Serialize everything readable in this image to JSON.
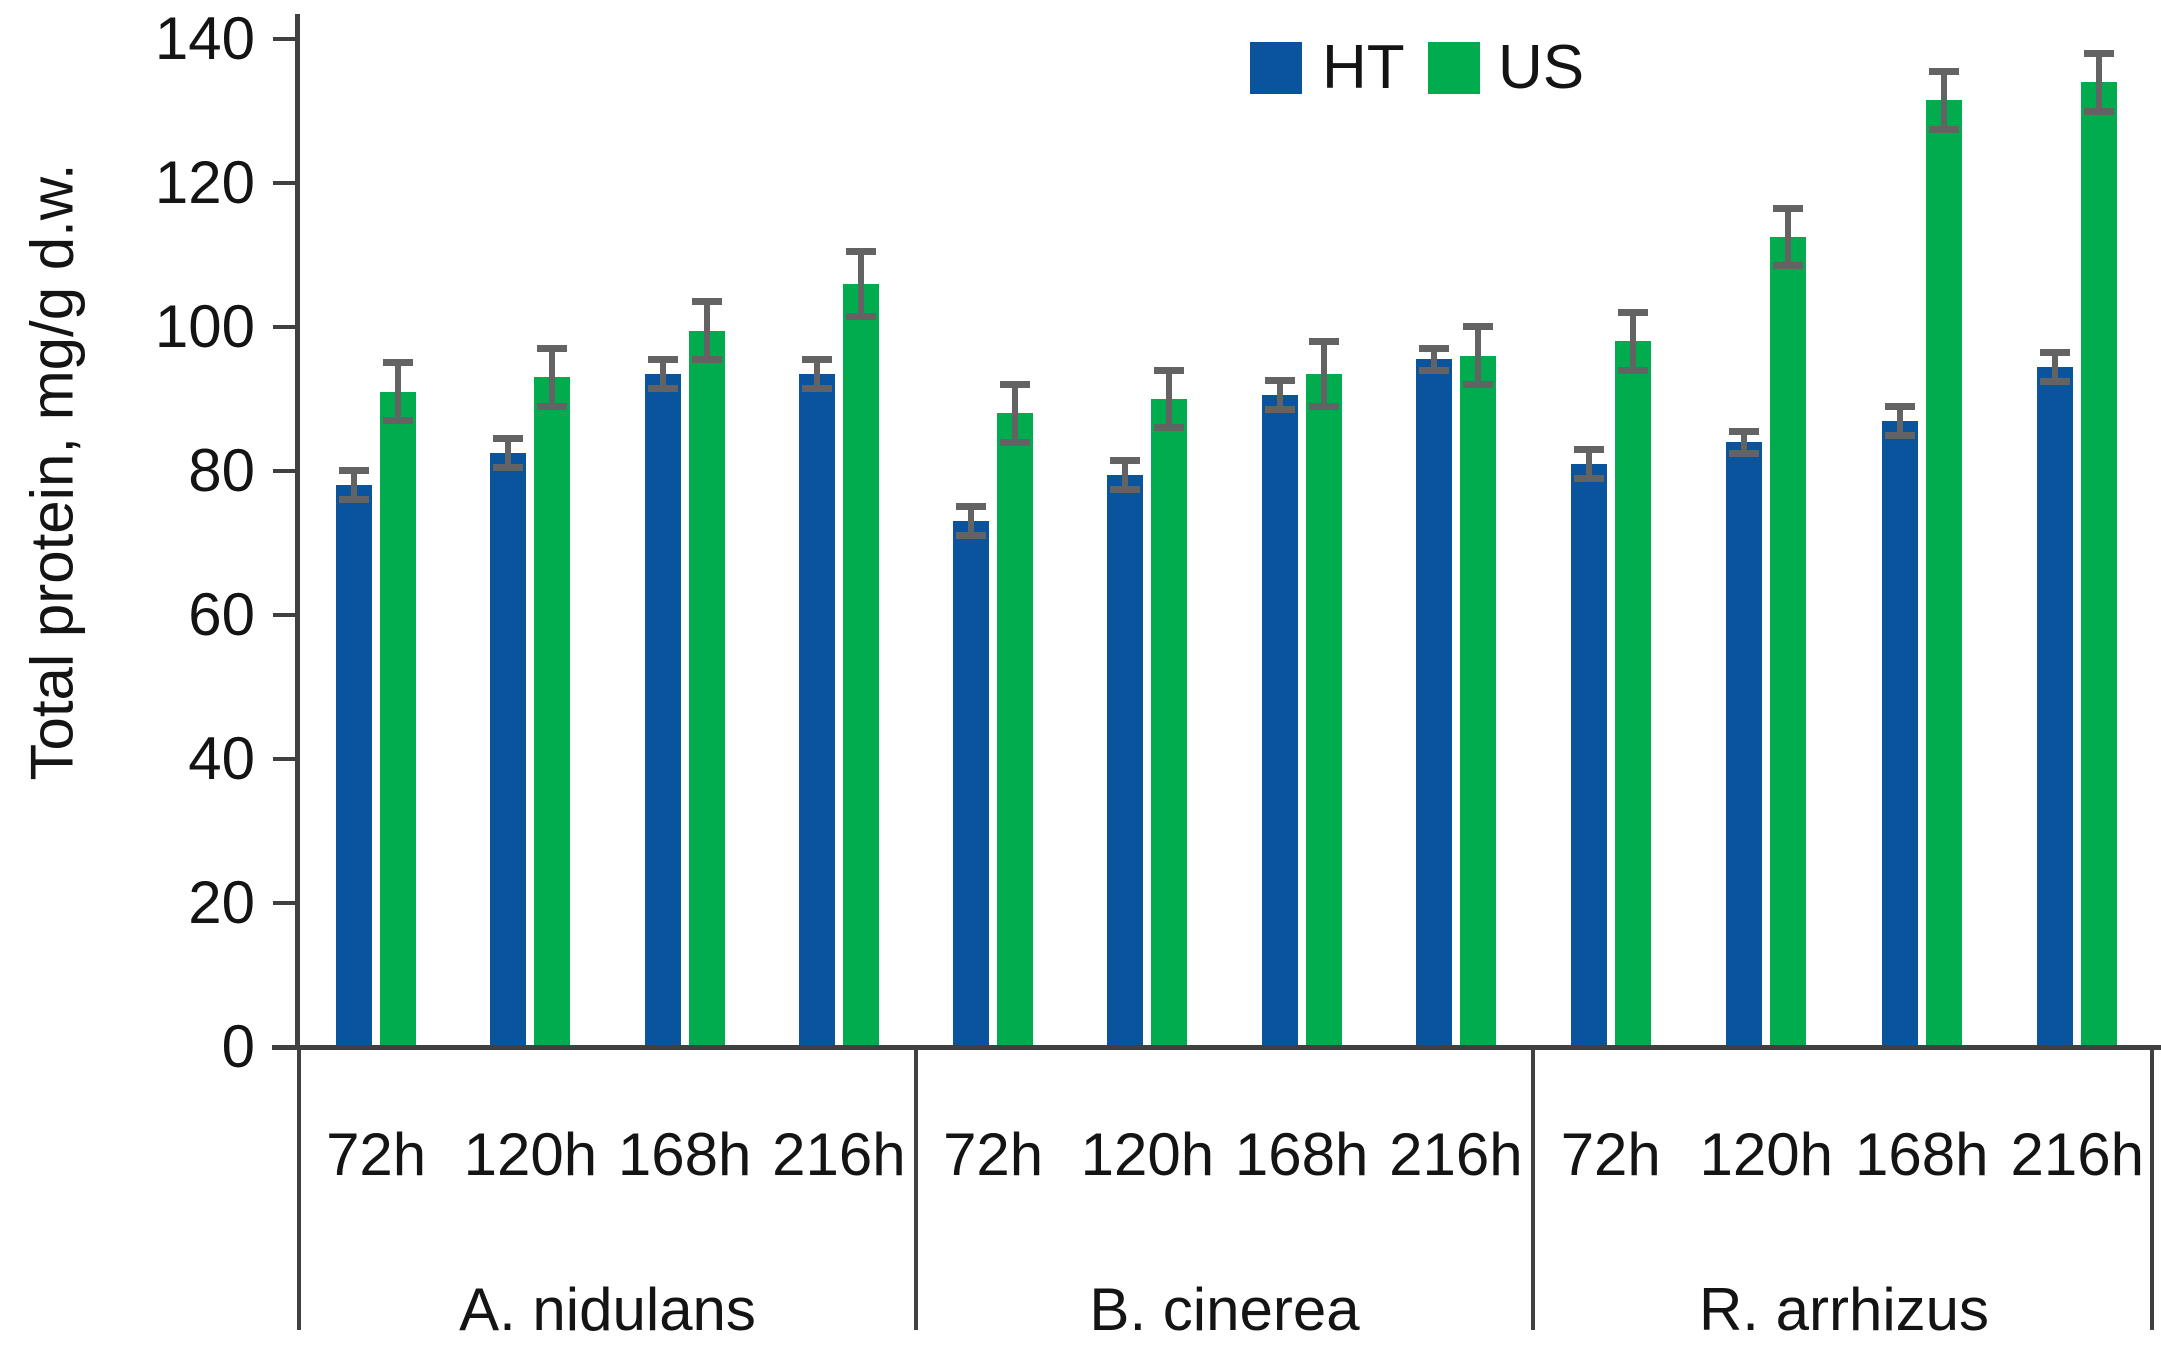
{
  "chart_data": {
    "type": "bar",
    "title": "",
    "ylabel": "Total protein, mg/g d.w.",
    "xlabel": "",
    "ylim": [
      0,
      140
    ],
    "ytick_step": 20,
    "ytick_labels": [
      "0",
      "20",
      "40",
      "60",
      "80",
      "100",
      "120",
      "140"
    ],
    "grid": "off",
    "legend_position": "top",
    "legend": [
      {
        "name": "HT",
        "color": "#0a549e"
      },
      {
        "name": "US",
        "color": "#00ac4e"
      }
    ],
    "error_bar_color": "#636363",
    "axis_color": "#404040",
    "groups": [
      {
        "label": "A. nidulans",
        "categories": [
          "72h",
          "120h",
          "168h",
          "216h"
        ],
        "series": [
          {
            "name": "HT",
            "values": [
              78,
              82.5,
              93.5,
              93.5
            ],
            "errors": [
              2.5,
              2.5,
              2.5,
              2.5
            ]
          },
          {
            "name": "US",
            "values": [
              91,
              93,
              99.5,
              106
            ],
            "errors": [
              4.5,
              4.5,
              4.5,
              5
            ]
          }
        ]
      },
      {
        "label": "B. cinerea",
        "categories": [
          "72h",
          "120h",
          "168h",
          "216h"
        ],
        "series": [
          {
            "name": "HT",
            "values": [
              73,
              79.5,
              90.5,
              95.5
            ],
            "errors": [
              2.5,
              2.5,
              2.5,
              2
            ]
          },
          {
            "name": "US",
            "values": [
              88,
              90,
              93.5,
              96
            ],
            "errors": [
              4.5,
              4.5,
              5,
              4.5
            ]
          }
        ]
      },
      {
        "label": "R. arrhizus",
        "categories": [
          "72h",
          "120h",
          "168h",
          "216h"
        ],
        "series": [
          {
            "name": "HT",
            "values": [
              81,
              84,
              87,
              94.5
            ],
            "errors": [
              2.5,
              2,
              2.5,
              2.5
            ]
          },
          {
            "name": "US",
            "values": [
              98,
              112.5,
              131.5,
              134
            ],
            "errors": [
              4.5,
              4.5,
              4.5,
              4.5
            ]
          }
        ]
      }
    ]
  }
}
